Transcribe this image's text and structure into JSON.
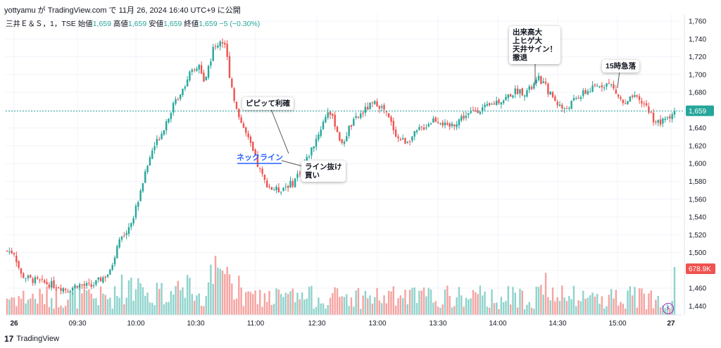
{
  "header": {
    "text": "yottyamu が TradingView.com で 11月 26, 2024 16:40 UTC+9 に公開"
  },
  "legend": {
    "symbol": "三井Ｅ＆Ｓ，1，TSE",
    "o_label": "始値",
    "o": "1,659",
    "h_label": "高値",
    "h": "1,659",
    "l_label": "安値",
    "l": "1,659",
    "c_label": "終値",
    "c": "1,659",
    "chg": "−5 (−0.30%)"
  },
  "brand": {
    "logo": "17",
    "name": "TradingView"
  },
  "colors": {
    "up": "#26a69a",
    "down": "#ef5350",
    "vol_up": "#8fd3cc",
    "vol_down": "#f5a3a0",
    "grid": "#f0f3fa",
    "price_line": "#26a69a",
    "vol_badge": "#ef5350",
    "accent_blue": "#2962ff"
  },
  "annotations": {
    "neckline": "ネックライン",
    "take_profit": "ピピッて利確",
    "breakout": "ライン抜け\n買い",
    "top_sign": "出来高大\n上ヒゲ大\n天井サイン！\n撤退",
    "drop_15": "15時急落"
  },
  "chart_data": {
    "type": "candlestick",
    "title": "",
    "xlabel": "",
    "ylabel": "",
    "x_ticks": [
      "26",
      "09:30",
      "10:00",
      "10:30",
      "11:00",
      "12:30",
      "13:00",
      "13:30",
      "14:00",
      "14:30",
      "15:00",
      "27"
    ],
    "y_ticks": [
      "1,760",
      "1,740",
      "1,720",
      "1,700",
      "1,680",
      "1,660",
      "1,640",
      "1,620",
      "1,600",
      "1,580",
      "1,560",
      "1,540",
      "1,520",
      "1,500",
      "1,480",
      "1,460",
      "1,440"
    ],
    "ylim": [
      1430,
      1768
    ],
    "last_price": "1,659",
    "volume_badge": "678.9K",
    "grid": true,
    "close_path": [
      {
        "t": 0,
        "p": 1502
      },
      {
        "t": 3,
        "p": 1500
      },
      {
        "t": 6,
        "p": 1475
      },
      {
        "t": 10,
        "p": 1470
      },
      {
        "t": 16,
        "p": 1466
      },
      {
        "t": 22,
        "p": 1462
      },
      {
        "t": 26,
        "p": 1458
      },
      {
        "t": 30,
        "p": 1464
      },
      {
        "t": 36,
        "p": 1462
      },
      {
        "t": 40,
        "p": 1470
      },
      {
        "t": 44,
        "p": 1478
      },
      {
        "t": 47,
        "p": 1508
      },
      {
        "t": 50,
        "p": 1520
      },
      {
        "t": 54,
        "p": 1540
      },
      {
        "t": 58,
        "p": 1580
      },
      {
        "t": 62,
        "p": 1615
      },
      {
        "t": 66,
        "p": 1635
      },
      {
        "t": 70,
        "p": 1660
      },
      {
        "t": 74,
        "p": 1680
      },
      {
        "t": 78,
        "p": 1700
      },
      {
        "t": 82,
        "p": 1710
      },
      {
        "t": 84,
        "p": 1690
      },
      {
        "t": 88,
        "p": 1728
      },
      {
        "t": 91,
        "p": 1738
      },
      {
        "t": 93,
        "p": 1735
      },
      {
        "t": 95,
        "p": 1700
      },
      {
        "t": 98,
        "p": 1660
      },
      {
        "t": 101,
        "p": 1640
      },
      {
        "t": 104,
        "p": 1620
      },
      {
        "t": 107,
        "p": 1598
      },
      {
        "t": 110,
        "p": 1580
      },
      {
        "t": 113,
        "p": 1572
      },
      {
        "t": 116,
        "p": 1570
      },
      {
        "t": 119,
        "p": 1575
      },
      {
        "t": 122,
        "p": 1578
      },
      {
        "t": 125,
        "p": 1592
      },
      {
        "t": 128,
        "p": 1605
      },
      {
        "t": 131,
        "p": 1622
      },
      {
        "t": 134,
        "p": 1640
      },
      {
        "t": 137,
        "p": 1660
      },
      {
        "t": 140,
        "p": 1645
      },
      {
        "t": 143,
        "p": 1620
      },
      {
        "t": 146,
        "p": 1640
      },
      {
        "t": 149,
        "p": 1650
      },
      {
        "t": 152,
        "p": 1658
      },
      {
        "t": 155,
        "p": 1665
      },
      {
        "t": 158,
        "p": 1668
      },
      {
        "t": 161,
        "p": 1660
      },
      {
        "t": 164,
        "p": 1645
      },
      {
        "t": 167,
        "p": 1628
      },
      {
        "t": 170,
        "p": 1625
      },
      {
        "t": 173,
        "p": 1630
      },
      {
        "t": 176,
        "p": 1638
      },
      {
        "t": 179,
        "p": 1643
      },
      {
        "t": 182,
        "p": 1650
      },
      {
        "t": 185,
        "p": 1648
      },
      {
        "t": 188,
        "p": 1640
      },
      {
        "t": 191,
        "p": 1645
      },
      {
        "t": 194,
        "p": 1652
      },
      {
        "t": 197,
        "p": 1655
      },
      {
        "t": 200,
        "p": 1660
      },
      {
        "t": 203,
        "p": 1662
      },
      {
        "t": 206,
        "p": 1664
      },
      {
        "t": 209,
        "p": 1670
      },
      {
        "t": 212,
        "p": 1672
      },
      {
        "t": 215,
        "p": 1678
      },
      {
        "t": 218,
        "p": 1682
      },
      {
        "t": 221,
        "p": 1680
      },
      {
        "t": 224,
        "p": 1685
      },
      {
        "t": 227,
        "p": 1695
      },
      {
        "t": 229,
        "p": 1690
      },
      {
        "t": 232,
        "p": 1678
      },
      {
        "t": 235,
        "p": 1668
      },
      {
        "t": 238,
        "p": 1660
      },
      {
        "t": 241,
        "p": 1668
      },
      {
        "t": 244,
        "p": 1675
      },
      {
        "t": 247,
        "p": 1680
      },
      {
        "t": 250,
        "p": 1684
      },
      {
        "t": 253,
        "p": 1688
      },
      {
        "t": 256,
        "p": 1690
      },
      {
        "t": 258,
        "p": 1688
      },
      {
        "t": 261,
        "p": 1675
      },
      {
        "t": 264,
        "p": 1665
      },
      {
        "t": 267,
        "p": 1675
      },
      {
        "t": 270,
        "p": 1670
      },
      {
        "t": 273,
        "p": 1665
      },
      {
        "t": 276,
        "p": 1650
      },
      {
        "t": 279,
        "p": 1645
      },
      {
        "t": 282,
        "p": 1652
      },
      {
        "t": 285,
        "p": 1659
      }
    ]
  }
}
